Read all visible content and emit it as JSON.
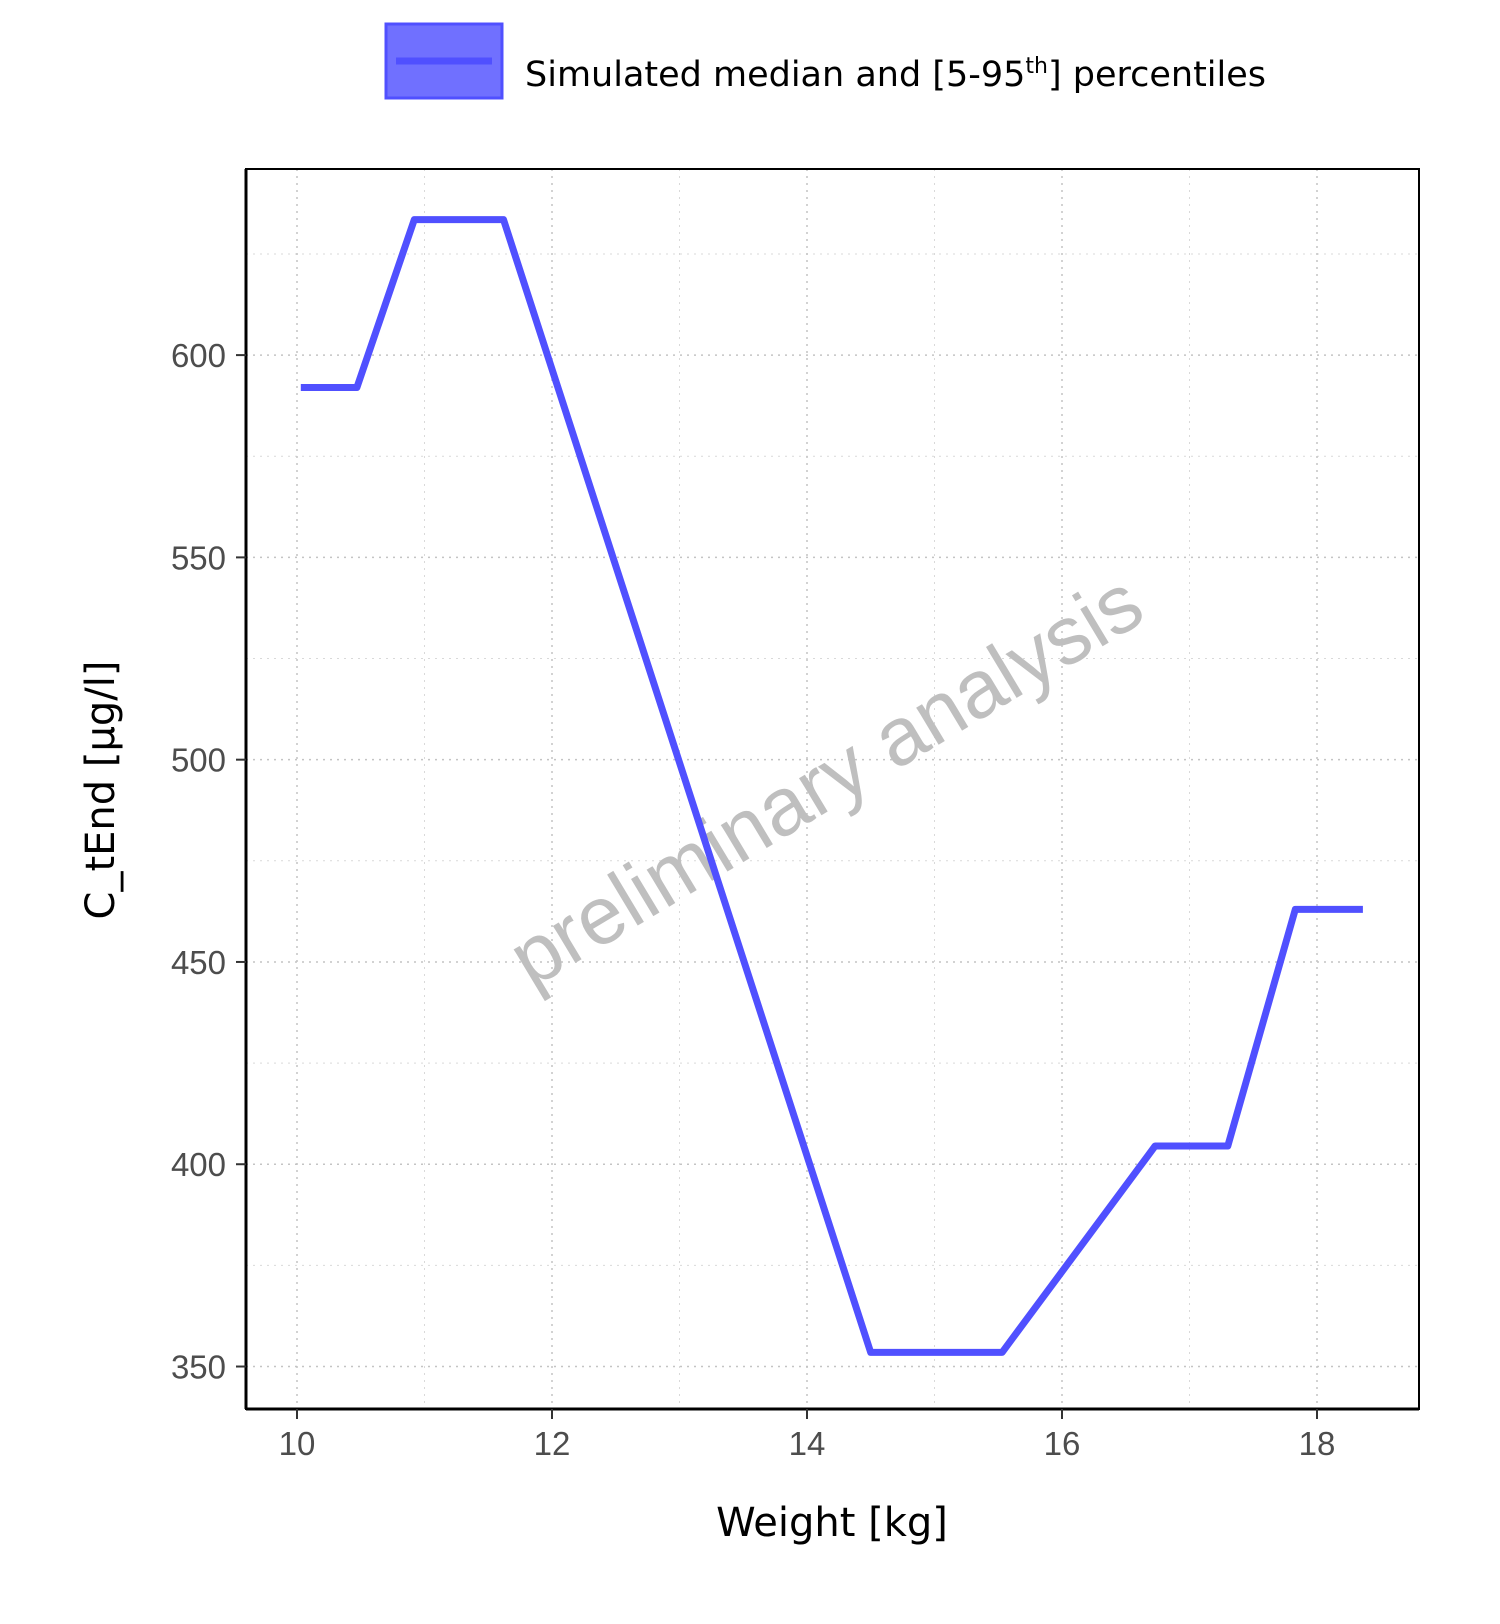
{
  "legend": {
    "label_main": "Simulated median and [5-95",
    "label_sup": "th",
    "label_end": "] percentiles",
    "color": "#5050FF"
  },
  "watermark": "preliminary analysis",
  "chart_data": {
    "type": "line",
    "xlabel": "Weight [kg]",
    "ylabel": "C_tEnd [µg/l]",
    "xlim": [
      9.6,
      18.8
    ],
    "ylim": [
      339.5,
      646
    ],
    "x_ticks": [
      10,
      12,
      14,
      16,
      18
    ],
    "y_ticks": [
      350,
      400,
      450,
      500,
      550,
      600
    ],
    "grid": true,
    "legend_position": "top",
    "series": [
      {
        "name": "Simulated median and [5-95th] percentiles",
        "color": "#5050FF",
        "x": [
          10.03,
          10.47,
          10.92,
          11.62,
          14.5,
          15.53,
          16.73,
          17.3,
          17.83,
          18.36
        ],
        "y": [
          592,
          592,
          633.5,
          633.5,
          353.5,
          353.5,
          404.5,
          404.5,
          463,
          463
        ]
      }
    ]
  }
}
